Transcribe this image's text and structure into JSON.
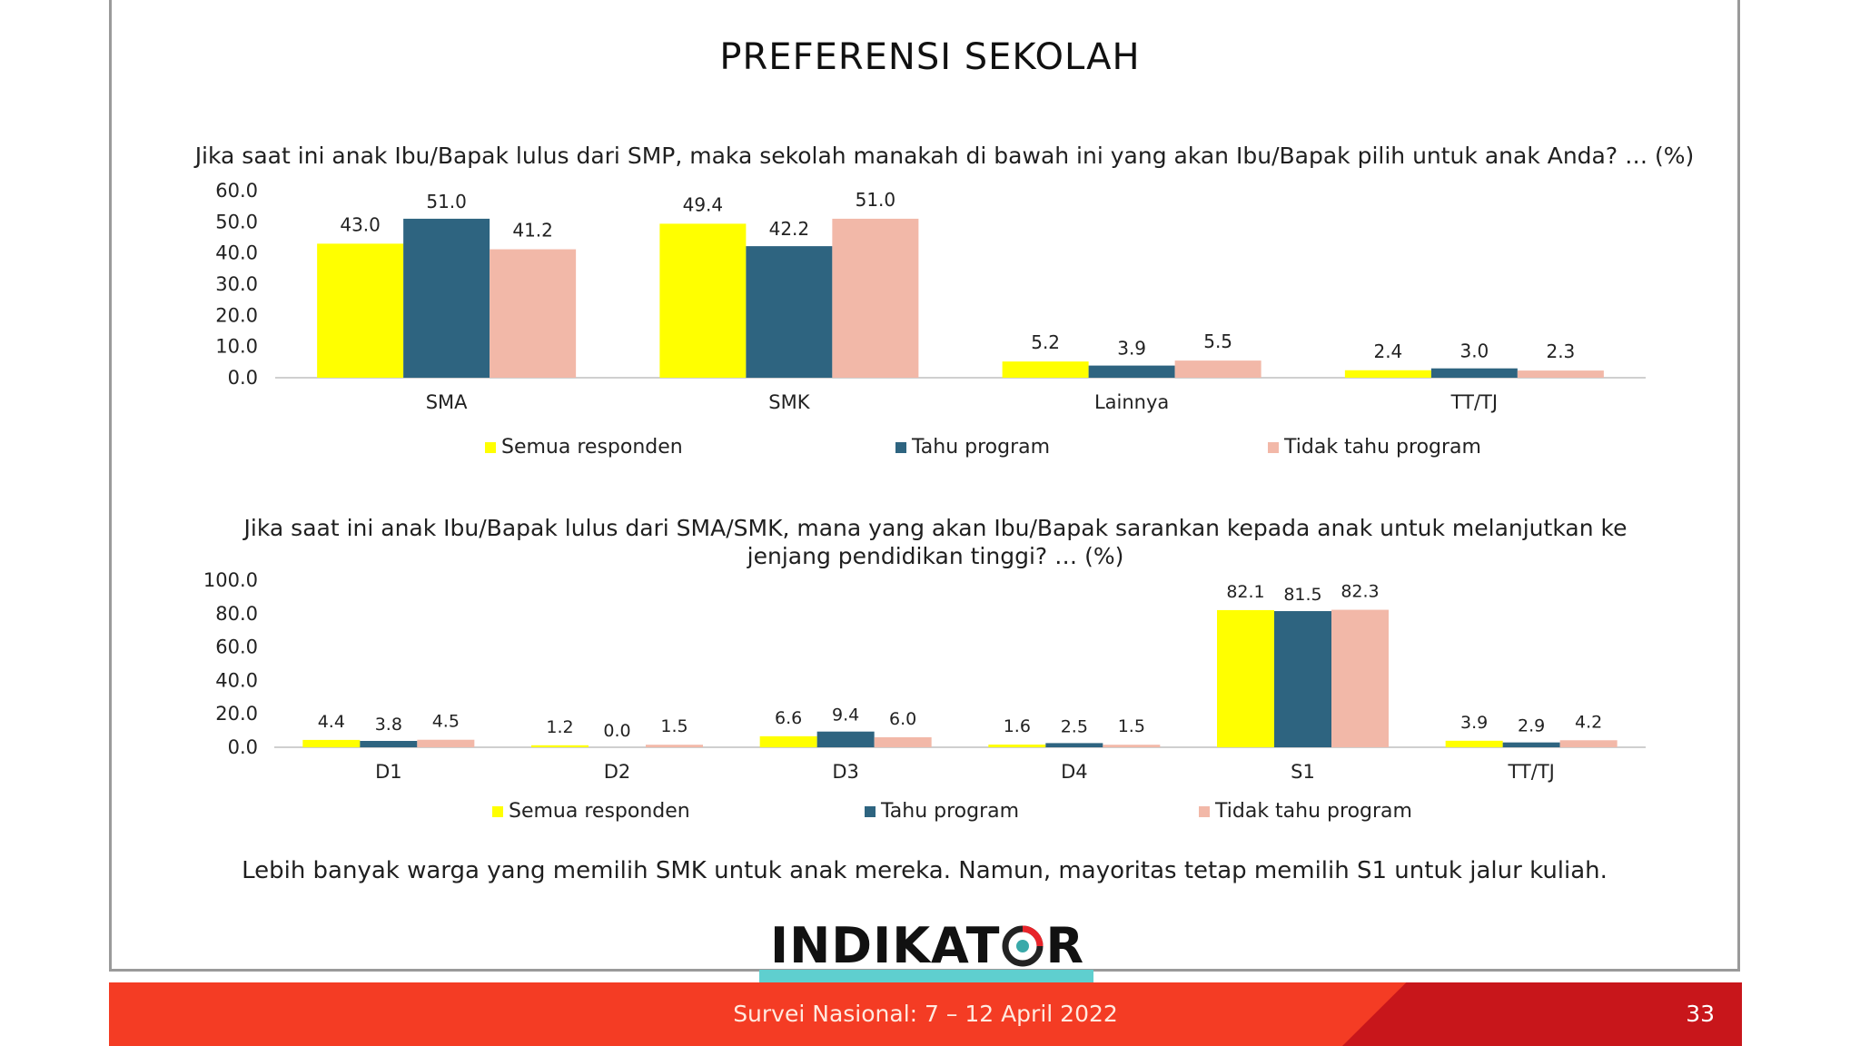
{
  "slide": {
    "title": "PREFERENSI SEKOLAH",
    "note": "Lebih banyak warga yang memilih SMK untuk anak mereka. Namun, mayoritas tetap memilih S1 untuk jalur kuliah.",
    "logo_text_left": "INDIKAT",
    "logo_text_right": "R",
    "footer": "Survei Nasional: 7 – 12 April 2022",
    "page_number": "33"
  },
  "colors": {
    "semua": "#ffff00",
    "tahu": "#2e6480",
    "tidak": "#f2b8a8",
    "footer_red": "#f43c24",
    "footer_dark": "#c8161b",
    "teal": "#5fcfcf"
  },
  "chart_data": [
    {
      "type": "bar",
      "title": "Jika saat ini anak Ibu/Bapak lulus dari SMP, maka sekolah manakah di bawah ini yang akan Ibu/Bapak pilih untuk anak Anda? … (%)",
      "categories": [
        "SMA",
        "SMK",
        "Lainnya",
        "TT/TJ"
      ],
      "series": [
        {
          "name": "Semua responden",
          "values": [
            43.0,
            49.4,
            5.2,
            2.4
          ]
        },
        {
          "name": "Tahu program",
          "values": [
            51.0,
            42.2,
            3.9,
            3.0
          ]
        },
        {
          "name": "Tidak tahu program",
          "values": [
            41.2,
            51.0,
            5.5,
            2.3
          ]
        }
      ],
      "ylim": [
        0,
        60
      ],
      "yticks": [
        "0.0",
        "10.0",
        "20.0",
        "30.0",
        "40.0",
        "50.0",
        "60.0"
      ],
      "legend": "bottom"
    },
    {
      "type": "bar",
      "title": "Jika saat ini anak Ibu/Bapak lulus dari SMA/SMK, mana yang akan Ibu/Bapak sarankan kepada anak untuk melanjutkan ke jenjang pendidikan tinggi? … (%)",
      "categories": [
        "D1",
        "D2",
        "D3",
        "D4",
        "S1",
        "TT/TJ"
      ],
      "series": [
        {
          "name": "Semua responden",
          "values": [
            4.4,
            1.2,
            6.6,
            1.6,
            82.1,
            3.9
          ]
        },
        {
          "name": "Tahu program",
          "values": [
            3.8,
            0.0,
            9.4,
            2.5,
            81.5,
            2.9
          ]
        },
        {
          "name": "Tidak tahu program",
          "values": [
            4.5,
            1.5,
            6.0,
            1.5,
            82.3,
            4.2
          ]
        }
      ],
      "ylim": [
        0,
        100
      ],
      "yticks": [
        "0.0",
        "20.0",
        "40.0",
        "60.0",
        "80.0",
        "100.0"
      ],
      "legend": "bottom"
    }
  ]
}
